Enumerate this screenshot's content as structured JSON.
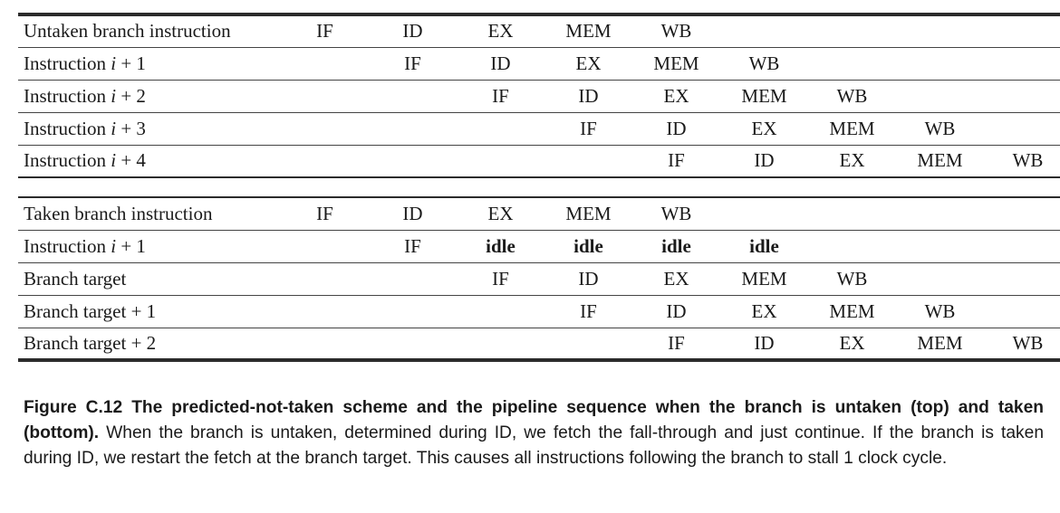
{
  "top_table": {
    "rows": [
      {
        "label": "Untaken branch instruction",
        "offset": 0,
        "stages": [
          "IF",
          "ID",
          "EX",
          "MEM",
          "WB"
        ]
      },
      {
        "label": "Instruction i + 1",
        "offset": 1,
        "stages": [
          "IF",
          "ID",
          "EX",
          "MEM",
          "WB"
        ]
      },
      {
        "label": "Instruction i + 2",
        "offset": 2,
        "stages": [
          "IF",
          "ID",
          "EX",
          "MEM",
          "WB"
        ]
      },
      {
        "label": "Instruction i + 3",
        "offset": 3,
        "stages": [
          "IF",
          "ID",
          "EX",
          "MEM",
          "WB"
        ]
      },
      {
        "label": "Instruction i + 4",
        "offset": 4,
        "stages": [
          "IF",
          "ID",
          "EX",
          "MEM",
          "WB"
        ]
      }
    ]
  },
  "bottom_table": {
    "rows": [
      {
        "label": "Taken branch instruction",
        "offset": 0,
        "stages": [
          "IF",
          "ID",
          "EX",
          "MEM",
          "WB"
        ]
      },
      {
        "label": "Instruction i + 1",
        "offset": 1,
        "stages": [
          "IF",
          "idle",
          "idle",
          "idle",
          "idle"
        ]
      },
      {
        "label": "Branch target",
        "offset": 2,
        "stages": [
          "IF",
          "ID",
          "EX",
          "MEM",
          "WB"
        ]
      },
      {
        "label": "Branch target + 1",
        "offset": 3,
        "stages": [
          "IF",
          "ID",
          "EX",
          "MEM",
          "WB"
        ]
      },
      {
        "label": "Branch target + 2",
        "offset": 4,
        "stages": [
          "IF",
          "ID",
          "EX",
          "MEM",
          "WB"
        ]
      }
    ]
  },
  "caption": {
    "figure_label": "Figure C.12",
    "title": "The predicted-not-taken scheme and the pipeline sequence when the branch is untaken (top) and taken (bottom).",
    "body": "When the branch is untaken, determined during ID, we fetch the fall-through and just continue. If the branch is taken during ID, we restart the fetch at the branch target. This causes all instructions following the branch to stall 1 clock cycle."
  }
}
